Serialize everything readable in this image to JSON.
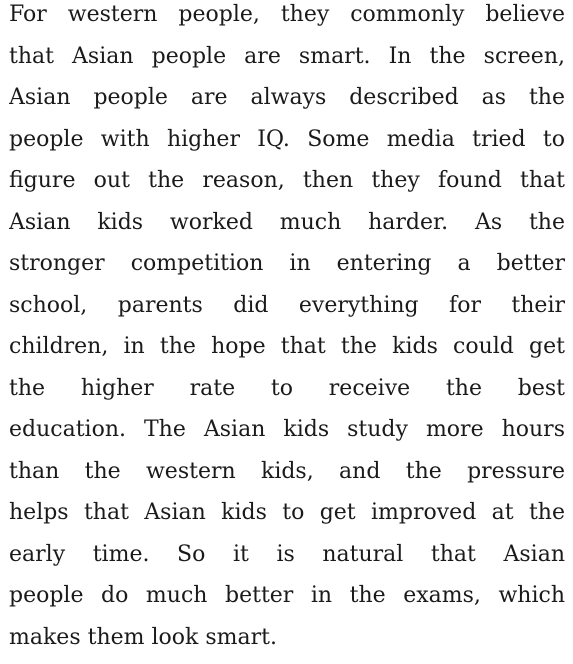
{
  "document": {
    "lines": [
      "For western people, they commonly believe",
      "that Asian people are smart. In the screen,",
      "Asian people are always described as the",
      "people with higher IQ. Some media tried to",
      "figure out the reason, then they found that",
      "Asian kids worked much harder. As the",
      "stronger competition in entering a better",
      "school, parents did everything for their",
      "children, in the hope that the kids could get",
      "the higher rate to receive the best",
      "education. The Asian kids study more hours",
      "than the western kids, and the pressure",
      "helps that Asian kids to get improved at the",
      "early time. So it is natural that Asian",
      "people do much better in the exams, which",
      "makes them look smart."
    ]
  }
}
